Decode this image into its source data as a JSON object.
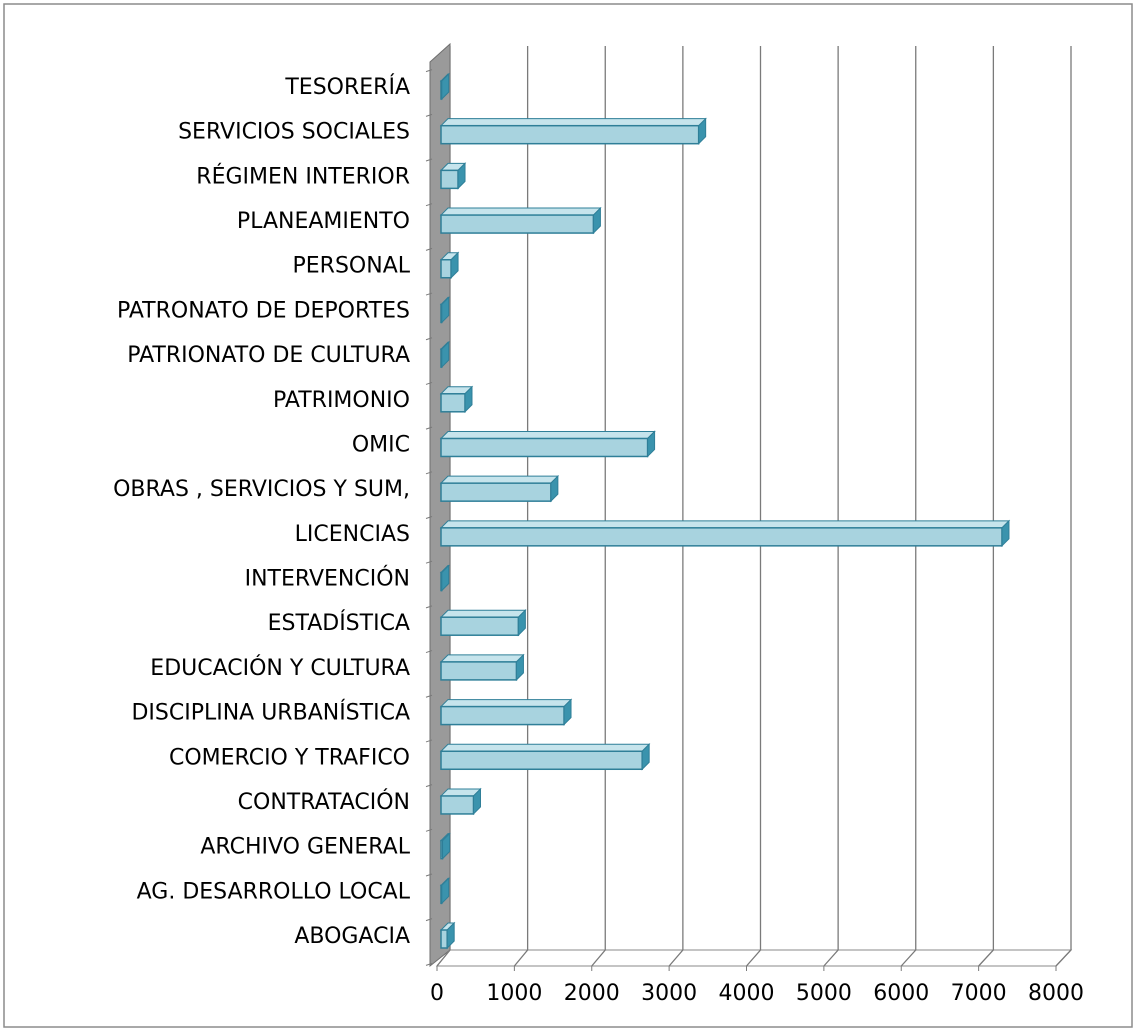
{
  "chart_data": {
    "type": "bar",
    "orientation": "horizontal",
    "color": "#a8d3df",
    "categories": [
      "TESORERÍA",
      "SERVICIOS SOCIALES",
      "RÉGIMEN INTERIOR",
      "PLANEAMIENTO",
      "PERSONAL",
      "PATRONATO DE DEPORTES",
      "PATRIONATO DE CULTURA",
      "PATRIMONIO",
      "OMIC",
      "OBRAS , SERVICIOS Y SUM,",
      "LICENCIAS",
      "INTERVENCIÓN",
      "ESTADÍSTICA",
      "EDUCACIÓN Y CULTURA",
      "DISCIPLINA URBANÍSTICA",
      "COMERCIO Y TRAFICO",
      "CONTRATACIÓN",
      "ARCHIVO GENERAL",
      "AG. DESARROLLO LOCAL",
      "ABOGACIA"
    ],
    "values": [
      10,
      3330,
      220,
      1970,
      130,
      10,
      10,
      310,
      2670,
      1420,
      7250,
      10,
      1000,
      975,
      1590,
      2600,
      420,
      20,
      10,
      80
    ],
    "xlim": [
      0,
      8000
    ],
    "xticks": [
      0,
      1000,
      2000,
      3000,
      4000,
      5000,
      6000,
      7000,
      8000
    ],
    "grid": true
  }
}
